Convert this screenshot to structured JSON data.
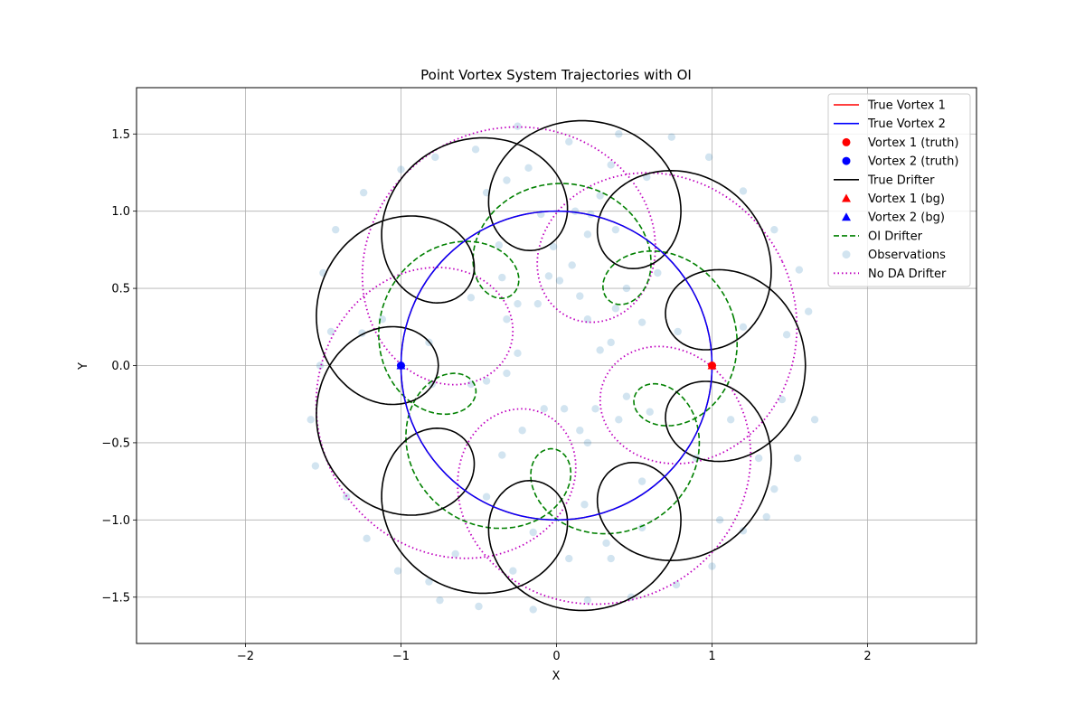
{
  "chart_data": {
    "type": "line",
    "title": "Point Vortex System Trajectories with OI",
    "xlabel": "X",
    "ylabel": "Y",
    "xlim": [
      -2.7,
      2.7
    ],
    "ylim": [
      -1.8,
      1.8
    ],
    "xticks": [
      -2,
      -1,
      0,
      1,
      2
    ],
    "yticks": [
      -1.5,
      -1.0,
      -0.5,
      0.0,
      0.5,
      1.0,
      1.5
    ],
    "xtick_labels": [
      "−2",
      "−1",
      "0",
      "1",
      "2"
    ],
    "ytick_labels": [
      "−1.5",
      "−1.0",
      "−0.5",
      "0.0",
      "0.5",
      "1.0",
      "1.5"
    ],
    "grid": true,
    "legend_position": "top-right",
    "legend": [
      {
        "label": "True Vortex 1",
        "color": "#ff0000",
        "marker": "line"
      },
      {
        "label": "True Vortex 2",
        "color": "#0000ff",
        "marker": "line"
      },
      {
        "label": "Vortex 1 (truth)",
        "color": "#ff0000",
        "marker": "circle"
      },
      {
        "label": "Vortex 2 (truth)",
        "color": "#0000ff",
        "marker": "circle"
      },
      {
        "label": "True Drifter",
        "color": "#000000",
        "marker": "line"
      },
      {
        "label": "Vortex 1 (bg)",
        "color": "#ff0000",
        "marker": "triangle"
      },
      {
        "label": "Vortex 2 (bg)",
        "color": "#0000ff",
        "marker": "triangle"
      },
      {
        "label": "OI Drifter",
        "color": "#008000",
        "marker": "dashed"
      },
      {
        "label": "Observations",
        "color": "#1f77b4",
        "marker": "faint-circle"
      },
      {
        "label": "No DA Drifter",
        "color": "#bf00bf",
        "marker": "dotted"
      }
    ],
    "vortex_circle": {
      "center": [
        0,
        0
      ],
      "radius": 1.0
    },
    "true_drifter_curve": {
      "R": 1.18,
      "r": 0.42,
      "lobes": 9,
      "phase_deg": 0
    },
    "oi_drifter_curve": {
      "R": 0.86,
      "r": 0.32,
      "lobes": 5,
      "phase_deg": 15
    },
    "no_da_drifter_curve": {
      "R": 0.96,
      "r": 0.64,
      "lobes": 4,
      "phase_deg": 25
    },
    "vortex_1_truth": [
      1.0,
      0.0
    ],
    "vortex_2_truth": [
      -1.0,
      0.0
    ],
    "vortex_1_bg": [
      1.0,
      0.0
    ],
    "vortex_2_bg": [
      -1.0,
      0.0
    ],
    "observations": [
      [
        -1.5,
        0.6
      ],
      [
        -1.42,
        0.88
      ],
      [
        -1.24,
        1.12
      ],
      [
        -1.0,
        1.27
      ],
      [
        -0.78,
        1.35
      ],
      [
        -0.52,
        1.4
      ],
      [
        -0.25,
        1.55
      ],
      [
        0.08,
        1.45
      ],
      [
        0.4,
        1.5
      ],
      [
        0.74,
        1.48
      ],
      [
        0.98,
        1.35
      ],
      [
        1.2,
        1.13
      ],
      [
        1.4,
        0.88
      ],
      [
        1.56,
        0.62
      ],
      [
        1.62,
        0.35
      ],
      [
        1.48,
        0.2
      ],
      [
        1.66,
        -0.35
      ],
      [
        1.55,
        -0.6
      ],
      [
        1.4,
        -0.8
      ],
      [
        1.2,
        -1.07
      ],
      [
        1.0,
        -1.3
      ],
      [
        0.77,
        -1.42
      ],
      [
        0.48,
        -1.5
      ],
      [
        0.2,
        -1.52
      ],
      [
        -0.15,
        -1.58
      ],
      [
        -0.5,
        -1.56
      ],
      [
        -0.75,
        -1.52
      ],
      [
        -1.02,
        -1.33
      ],
      [
        -1.22,
        -1.12
      ],
      [
        -1.35,
        -0.85
      ],
      [
        -1.55,
        -0.65
      ],
      [
        -1.58,
        -0.35
      ],
      [
        -1.52,
        0.0
      ],
      [
        -1.45,
        0.22
      ],
      [
        -1.25,
        0.21
      ],
      [
        -1.12,
        0.3
      ],
      [
        -0.82,
        0.15
      ],
      [
        -0.8,
        -0.12
      ],
      [
        -0.55,
        -0.12
      ],
      [
        -0.45,
        -0.1
      ],
      [
        -0.32,
        -0.05
      ],
      [
        -0.25,
        0.08
      ],
      [
        -0.32,
        0.3
      ],
      [
        -0.55,
        0.44
      ],
      [
        -0.25,
        0.4
      ],
      [
        -0.35,
        0.57
      ],
      [
        -0.37,
        0.78
      ],
      [
        -0.45,
        1.12
      ],
      [
        -0.32,
        1.2
      ],
      [
        -0.18,
        1.28
      ],
      [
        -0.1,
        0.98
      ],
      [
        -0.02,
        0.77
      ],
      [
        -0.05,
        0.58
      ],
      [
        -0.12,
        0.4
      ],
      [
        0.02,
        0.55
      ],
      [
        0.15,
        0.45
      ],
      [
        0.2,
        0.3
      ],
      [
        0.35,
        0.15
      ],
      [
        0.28,
        0.1
      ],
      [
        0.55,
        0.28
      ],
      [
        0.78,
        0.22
      ],
      [
        0.65,
        0.6
      ],
      [
        0.45,
        0.5
      ],
      [
        0.38,
        0.37
      ],
      [
        0.38,
        0.88
      ],
      [
        0.28,
        1.1
      ],
      [
        0.22,
        0.98
      ],
      [
        0.12,
        1.0
      ],
      [
        0.35,
        1.3
      ],
      [
        0.58,
        1.22
      ],
      [
        0.1,
        0.65
      ],
      [
        0.2,
        0.85
      ],
      [
        0.45,
        -0.2
      ],
      [
        0.6,
        -0.3
      ],
      [
        0.4,
        -0.35
      ],
      [
        0.25,
        -0.28
      ],
      [
        0.15,
        -0.42
      ],
      [
        0.2,
        -0.5
      ],
      [
        0.05,
        -0.28
      ],
      [
        -0.08,
        -0.28
      ],
      [
        -0.22,
        -0.42
      ],
      [
        -0.35,
        -0.58
      ],
      [
        -0.45,
        -0.85
      ],
      [
        -0.15,
        -1.08
      ],
      [
        0.08,
        -1.25
      ],
      [
        0.18,
        -0.9
      ],
      [
        0.32,
        -1.15
      ],
      [
        0.35,
        -1.25
      ],
      [
        0.55,
        -1.05
      ],
      [
        0.55,
        -0.75
      ],
      [
        0.9,
        -0.6
      ],
      [
        1.12,
        -0.35
      ],
      [
        1.45,
        -0.22
      ],
      [
        1.35,
        -0.98
      ],
      [
        -0.82,
        -1.4
      ],
      [
        -0.65,
        -1.22
      ],
      [
        -0.28,
        -1.33
      ],
      [
        1.3,
        -0.6
      ],
      [
        1.05,
        -1.0
      ],
      [
        1.2,
        0.25
      ]
    ]
  }
}
